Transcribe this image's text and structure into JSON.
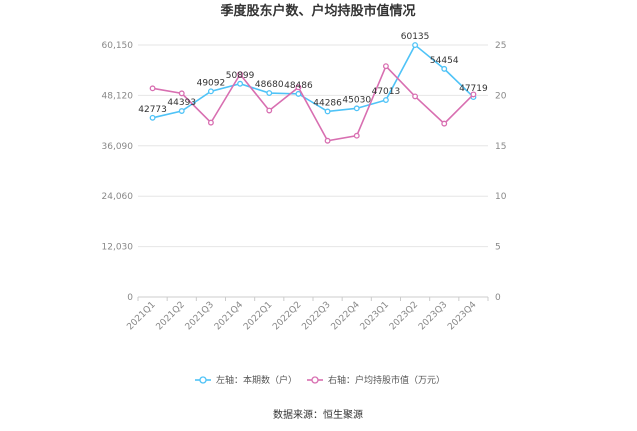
{
  "chart_data": {
    "type": "line",
    "title": "季度股东户数、户均持股市值情况",
    "categories": [
      "2021Q1",
      "2021Q2",
      "2021Q3",
      "2021Q4",
      "2022Q1",
      "2022Q2",
      "2022Q3",
      "2022Q4",
      "2023Q1",
      "2023Q2",
      "2023Q3",
      "2023Q4"
    ],
    "left_axis": {
      "ticks": [
        "0",
        "12,030",
        "24,060",
        "36,090",
        "48,120",
        "60,150"
      ],
      "ylim": [
        0,
        60150
      ]
    },
    "right_axis": {
      "ticks": [
        "0",
        "5",
        "10",
        "15",
        "20",
        "25"
      ],
      "ylim": [
        0,
        25
      ]
    },
    "series": [
      {
        "name": "左轴：本期数（户）",
        "axis": "left",
        "color": "#4fc3f7",
        "values": [
          42773,
          44393,
          49092,
          50899,
          48680,
          48486,
          44286,
          45030,
          47013,
          60135,
          54454,
          47719
        ],
        "labels": [
          "42773",
          "44393",
          "49092",
          "50899",
          "48680",
          "48486",
          "44286",
          "45030",
          "47013",
          "60135",
          "54454",
          "47719"
        ]
      },
      {
        "name": "右轴：户均持股市值（万元）",
        "axis": "right",
        "color": "#d86fb1",
        "values": [
          20.7,
          20.2,
          17.3,
          22.1,
          18.5,
          20.8,
          15.5,
          16.0,
          22.9,
          19.9,
          17.2,
          20.1
        ]
      }
    ],
    "grid": true,
    "legend": "bottom"
  },
  "source": "数据来源：恒生聚源"
}
